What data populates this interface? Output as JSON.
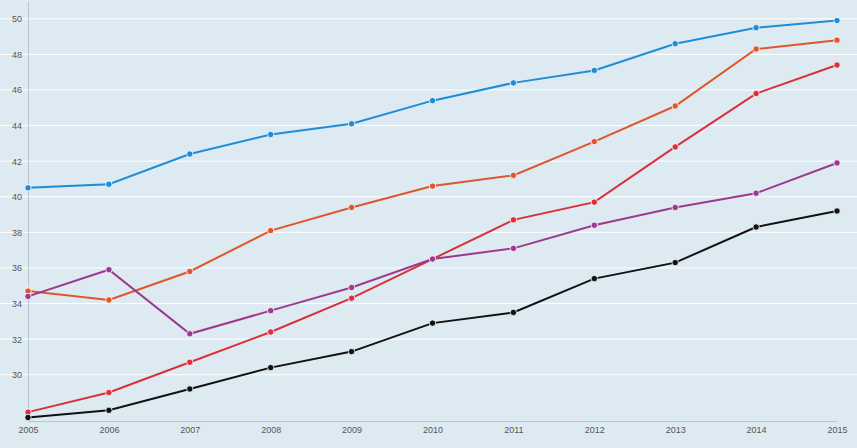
{
  "chart_data": {
    "type": "line",
    "x": [
      2005,
      2006,
      2007,
      2008,
      2009,
      2010,
      2011,
      2012,
      2013,
      2014,
      2015
    ],
    "xlim": [
      2005,
      2015
    ],
    "xticks": [
      2005,
      2006,
      2007,
      2008,
      2009,
      2010,
      2011,
      2012,
      2013,
      2014,
      2015
    ],
    "ylim": [
      27.4,
      51
    ],
    "yticks": [
      30,
      32,
      34,
      36,
      38,
      40,
      42,
      44,
      46,
      48,
      50
    ],
    "grid": true,
    "marker": "circle",
    "series": [
      {
        "color": "#1f8dd6",
        "values": [
          40.5,
          40.7,
          42.4,
          43.5,
          44.1,
          45.4,
          46.4,
          47.1,
          48.6,
          49.5,
          49.9
        ]
      },
      {
        "color": "#e0562b",
        "values": [
          34.7,
          34.2,
          35.8,
          38.1,
          39.4,
          40.6,
          41.2,
          43.1,
          45.1,
          48.3,
          48.8
        ]
      },
      {
        "color": "#d9303a",
        "values": [
          27.9,
          29.0,
          30.7,
          32.4,
          34.3,
          36.5,
          38.7,
          39.7,
          42.8,
          45.8,
          47.4
        ]
      },
      {
        "color": "#9b3a8e",
        "values": [
          34.4,
          35.9,
          32.3,
          33.6,
          34.9,
          36.5,
          37.1,
          38.4,
          39.4,
          40.2,
          41.9
        ]
      },
      {
        "color": "#111111",
        "values": [
          27.6,
          28.0,
          29.2,
          30.4,
          31.3,
          32.9,
          33.5,
          35.4,
          36.3,
          38.3,
          39.2
        ]
      }
    ]
  }
}
